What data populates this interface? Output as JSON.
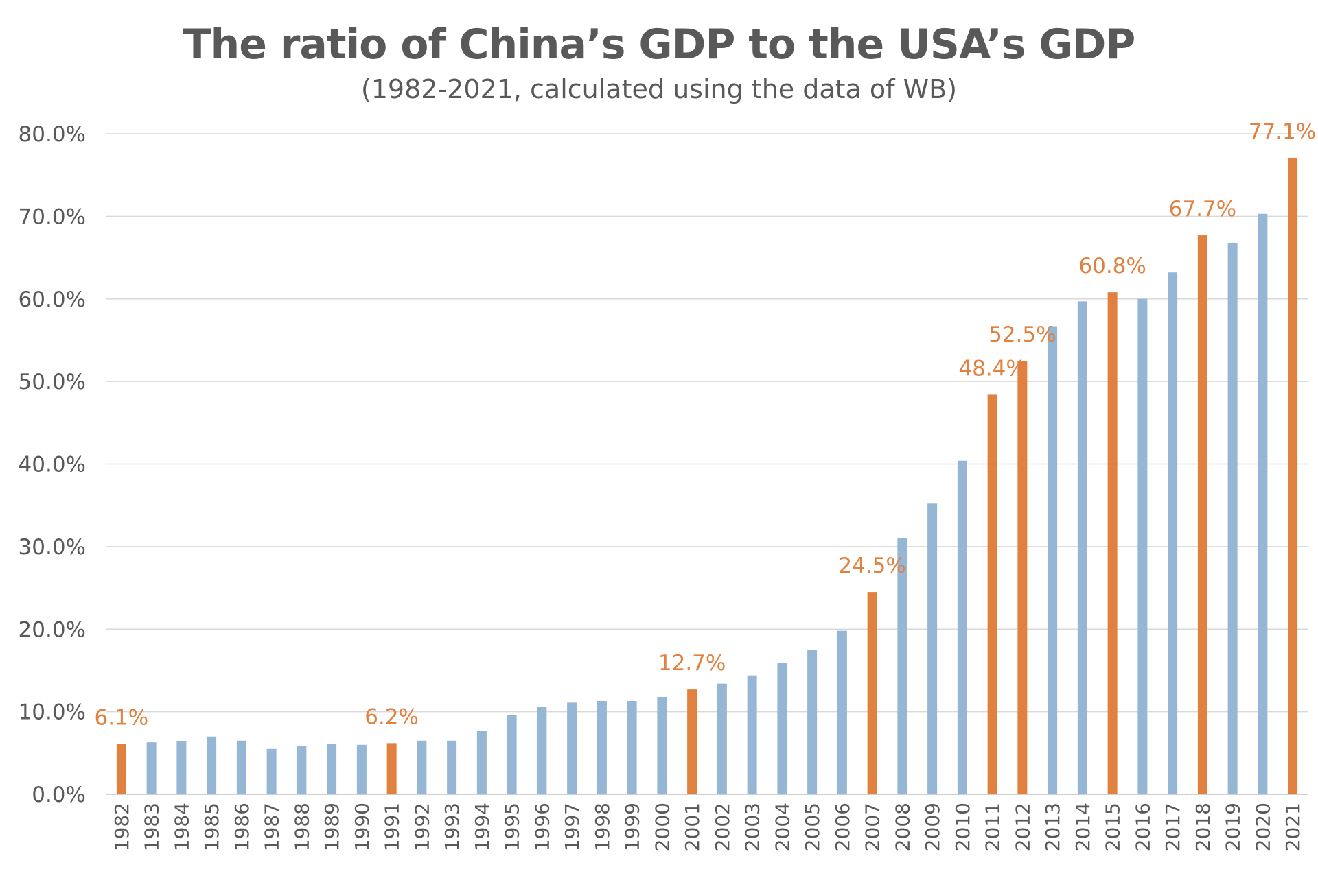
{
  "chart_data": {
    "type": "bar",
    "title": "The ratio of China’s GDP to the USA’s GDP",
    "subtitle": "(1982-2021, calculated using the data of WB)",
    "xlabel": "",
    "ylabel": "",
    "ylim": [
      0,
      80
    ],
    "yticks": [
      "0.0%",
      "10.0%",
      "20.0%",
      "30.0%",
      "40.0%",
      "50.0%",
      "60.0%",
      "70.0%",
      "80.0%"
    ],
    "grid": true,
    "legend": "none",
    "colors": {
      "default": "#95B6D4",
      "highlight": "#E0813F",
      "label": "#E0813F",
      "text": "#595959"
    },
    "categories": [
      "1982",
      "1983",
      "1984",
      "1985",
      "1986",
      "1987",
      "1988",
      "1989",
      "1990",
      "1991",
      "1992",
      "1993",
      "1994",
      "1995",
      "1996",
      "1997",
      "1998",
      "1999",
      "2000",
      "2001",
      "2002",
      "2003",
      "2004",
      "2005",
      "2006",
      "2007",
      "2008",
      "2009",
      "2010",
      "2011",
      "2012",
      "2013",
      "2014",
      "2015",
      "2016",
      "2017",
      "2018",
      "2019",
      "2020",
      "2021"
    ],
    "values": [
      6.1,
      6.3,
      6.4,
      7.0,
      6.5,
      5.5,
      5.9,
      6.1,
      6.0,
      6.2,
      6.5,
      6.5,
      7.7,
      9.6,
      10.6,
      11.1,
      11.3,
      11.3,
      11.8,
      12.7,
      13.4,
      14.4,
      15.9,
      17.5,
      19.8,
      24.5,
      31.0,
      35.2,
      40.4,
      48.4,
      52.5,
      56.7,
      59.7,
      60.8,
      60.0,
      63.2,
      67.7,
      66.8,
      70.3,
      77.1
    ],
    "highlighted": [
      "1982",
      "1991",
      "2001",
      "2007",
      "2011",
      "2012",
      "2015",
      "2018",
      "2021"
    ],
    "data_labels": [
      {
        "category": "1982",
        "text": "6.1%"
      },
      {
        "category": "1991",
        "text": "6.2%"
      },
      {
        "category": "2001",
        "text": "12.7%"
      },
      {
        "category": "2007",
        "text": "24.5%"
      },
      {
        "category": "2011",
        "text": "48.4%"
      },
      {
        "category": "2012",
        "text": "52.5%"
      },
      {
        "category": "2015",
        "text": "60.8%"
      },
      {
        "category": "2018",
        "text": "67.7%"
      },
      {
        "category": "2021",
        "text": "77.1%"
      }
    ]
  }
}
